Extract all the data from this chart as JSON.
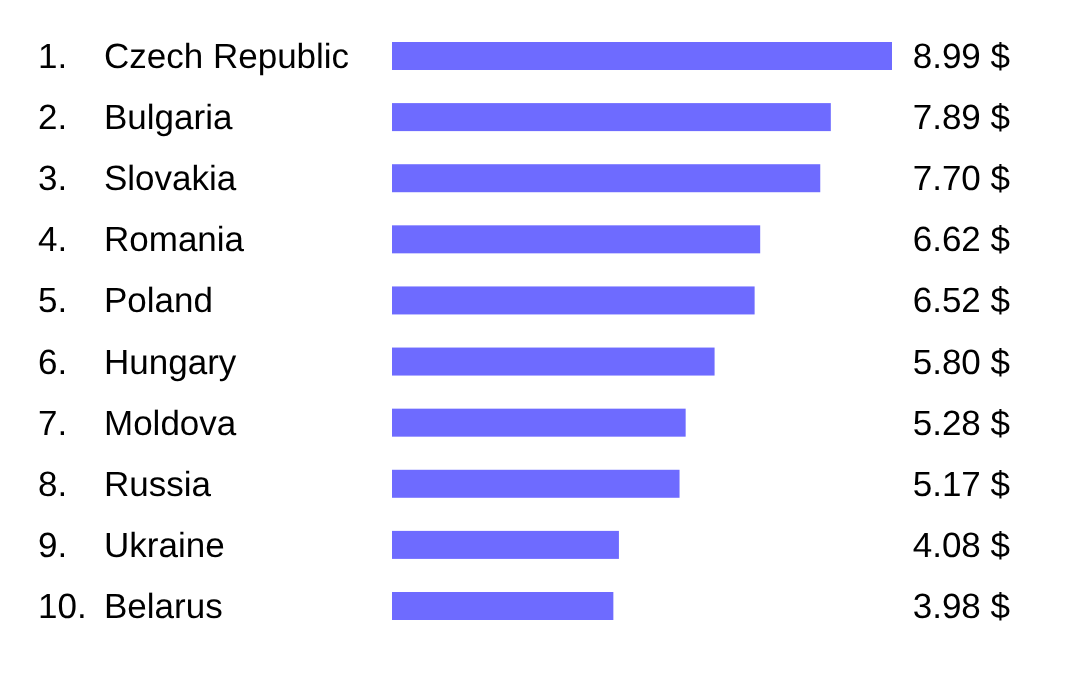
{
  "chart_data": {
    "type": "bar",
    "orientation": "horizontal",
    "categories": [
      "1. Czech Republic",
      "2. Bulgaria",
      "3. Slovakia",
      "4. Romania",
      "5. Poland",
      "6. Hungary",
      "7. Moldova",
      "8. Russia",
      "9. Ukraine",
      "10. Belarus"
    ],
    "values": [
      8.99,
      7.89,
      7.7,
      6.62,
      6.52,
      5.8,
      5.28,
      5.17,
      4.08,
      3.98
    ],
    "value_labels": [
      "8.99 $",
      "7.89 $",
      "7.70 $",
      "6.62 $",
      "6.52 $",
      "5.80 $",
      "5.28 $",
      "5.17 $",
      "4.08 $",
      "3.98 $"
    ],
    "color": "#6e6bff"
  }
}
